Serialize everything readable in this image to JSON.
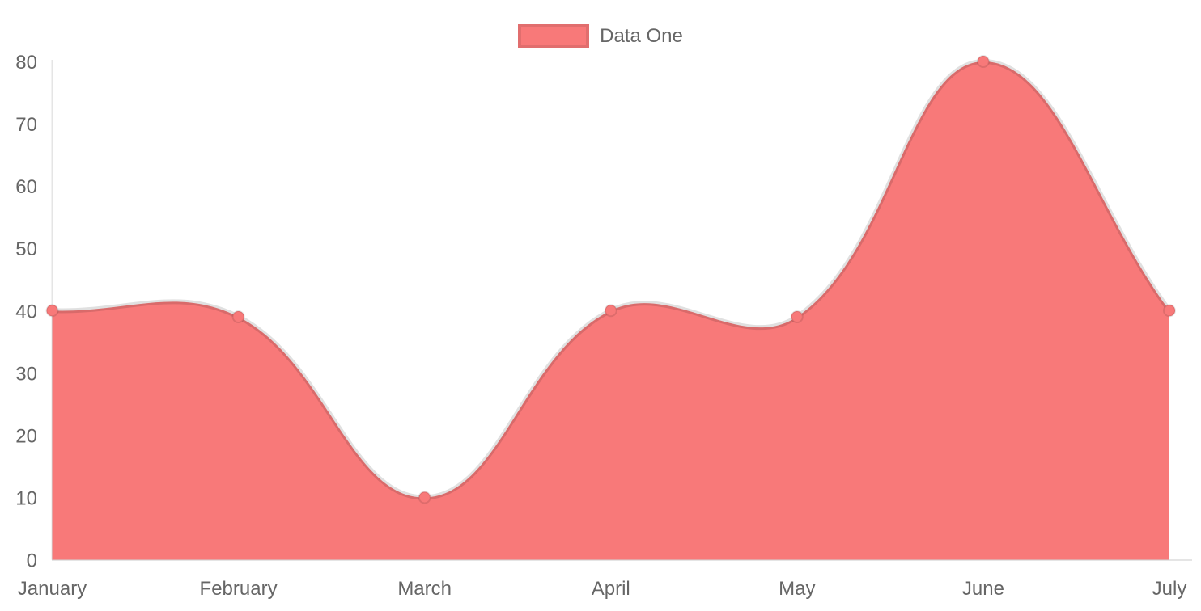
{
  "chart_data": {
    "type": "area",
    "title": "",
    "categories": [
      "January",
      "February",
      "March",
      "April",
      "May",
      "June",
      "July"
    ],
    "series": [
      {
        "name": "Data One",
        "values": [
          40,
          39,
          10,
          40,
          39,
          80,
          40
        ]
      }
    ],
    "xlabel": "",
    "ylabel": "",
    "ylim": [
      0,
      80
    ],
    "yticks": [
      0,
      10,
      20,
      30,
      40,
      50,
      60,
      70,
      80
    ],
    "grid": false,
    "legend_position": "top",
    "curve_tension": 0.4,
    "colors": {
      "fill": "#f87979",
      "line_overlay": "rgba(0,0,0,0.12)",
      "point_fill": "#f87979",
      "point_stroke": "rgba(0,0,0,0.10)",
      "axis_line": "rgba(0,0,0,0.10)",
      "tick_text": "#666666",
      "background": "#ffffff"
    }
  },
  "legend": {
    "label": "Data One"
  }
}
